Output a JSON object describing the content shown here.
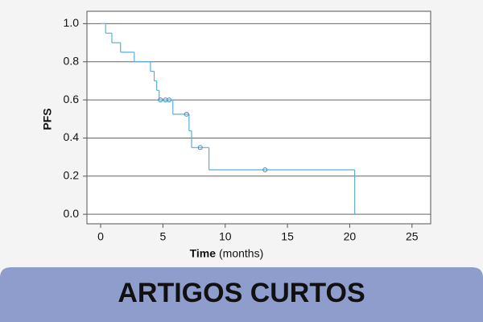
{
  "chart_data": {
    "type": "step",
    "x_label": "Time",
    "x_label_unit": "(months)",
    "y_label": "PFS",
    "series": [
      {
        "color": "#5aaedc",
        "x": [
          0,
          0.4,
          0.9,
          1.6,
          2.7,
          4.0,
          4.3,
          4.5,
          4.7,
          5.8,
          7.1,
          7.3,
          8.7,
          20.4
        ],
        "values": [
          1.0,
          0.95,
          0.9,
          0.85,
          0.8,
          0.75,
          0.7,
          0.65,
          0.6,
          0.525,
          0.4375,
          0.35,
          0.233,
          0
        ]
      }
    ],
    "censored": {
      "color": "#3a8cc8",
      "x": [
        4.8,
        5.2,
        5.5,
        6.9,
        8.0,
        13.2
      ],
      "values": [
        0.6,
        0.6,
        0.6,
        0.525,
        0.35,
        0.233
      ]
    },
    "xlim": [
      -1.1,
      26.5
    ],
    "xticks": [
      0,
      5,
      10,
      15,
      20,
      25
    ],
    "ylim": [
      -0.05,
      1.065
    ],
    "yticks": [
      {
        "value": 0,
        "label": "0.0"
      },
      0.2,
      0.4,
      0.6,
      0.8,
      {
        "value": 1,
        "label": "1.0"
      }
    ],
    "grid": true
  },
  "banner": {
    "text": "ARTIGOS CURTOS"
  }
}
